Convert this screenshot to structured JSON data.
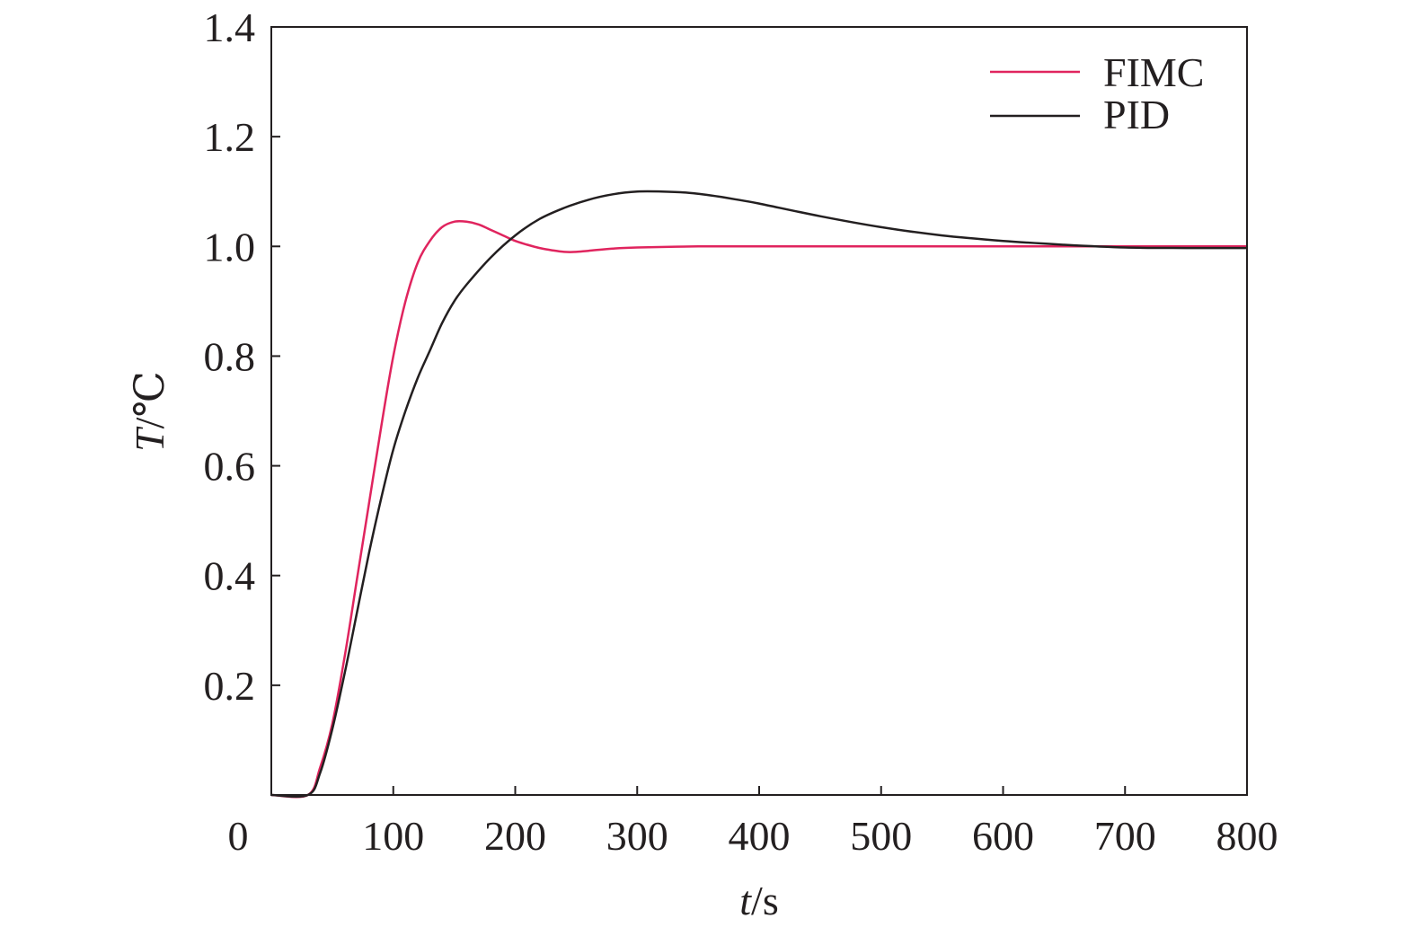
{
  "chart_data": {
    "type": "line",
    "xlabel": {
      "var": "t",
      "unit": "/s"
    },
    "ylabel": {
      "var": "T",
      "unit": "/℃"
    },
    "xlim": [
      0,
      800
    ],
    "ylim": [
      0,
      1.4
    ],
    "x_ticks": [
      "0",
      "100",
      "200",
      "300",
      "400",
      "500",
      "600",
      "700",
      "800"
    ],
    "y_ticks": [
      "0.2",
      "0.4",
      "0.6",
      "0.8",
      "1.0",
      "1.2",
      "1.4"
    ],
    "grid": false,
    "legend_position": "top-right",
    "series": [
      {
        "name": "FIMC",
        "color": "#e0245e",
        "x": [
          0,
          30,
          40,
          50,
          60,
          70,
          80,
          90,
          100,
          110,
          120,
          130,
          140,
          150,
          160,
          170,
          180,
          190,
          200,
          210,
          220,
          230,
          240,
          250,
          260,
          280,
          300,
          350,
          400,
          500,
          600,
          700,
          800
        ],
        "y": [
          0,
          0,
          0.05,
          0.13,
          0.25,
          0.39,
          0.53,
          0.67,
          0.8,
          0.9,
          0.97,
          1.01,
          1.035,
          1.045,
          1.045,
          1.04,
          1.03,
          1.02,
          1.01,
          1.003,
          0.997,
          0.993,
          0.99,
          0.99,
          0.992,
          0.996,
          0.998,
          1.0,
          1.0,
          1.0,
          1.0,
          1.0,
          1.0
        ]
      },
      {
        "name": "PID",
        "color": "#231f20",
        "x": [
          0,
          30,
          40,
          50,
          60,
          70,
          80,
          90,
          100,
          110,
          120,
          130,
          140,
          150,
          160,
          180,
          200,
          220,
          240,
          260,
          280,
          300,
          320,
          340,
          360,
          380,
          400,
          450,
          500,
          550,
          600,
          650,
          700,
          750,
          800
        ],
        "y": [
          0,
          0,
          0.04,
          0.12,
          0.22,
          0.33,
          0.44,
          0.54,
          0.63,
          0.7,
          0.76,
          0.81,
          0.86,
          0.9,
          0.93,
          0.98,
          1.02,
          1.05,
          1.07,
          1.085,
          1.095,
          1.1,
          1.1,
          1.098,
          1.093,
          1.086,
          1.078,
          1.055,
          1.035,
          1.02,
          1.01,
          1.003,
          0.998,
          0.997,
          0.997
        ]
      }
    ]
  }
}
